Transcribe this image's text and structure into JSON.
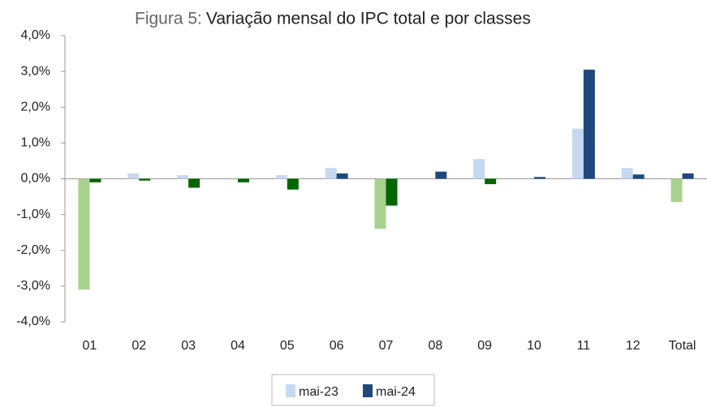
{
  "chart_data": {
    "type": "bar",
    "figure_label": "Figura 5:",
    "title": "Variação mensal do IPC total e por classes",
    "categories": [
      "01",
      "02",
      "03",
      "04",
      "05",
      "06",
      "07",
      "08",
      "09",
      "10",
      "11",
      "12",
      "Total"
    ],
    "series": [
      {
        "name": "mai-23",
        "color": "#c6d9f1",
        "negative_color": "#a9d18e",
        "values": [
          -3.1,
          0.15,
          0.1,
          0,
          0.1,
          0.3,
          -1.4,
          0,
          0.55,
          0,
          1.4,
          0.3,
          -0.65
        ]
      },
      {
        "name": "mai-24",
        "color": "#1f497d",
        "negative_color": "#006600",
        "values": [
          -0.1,
          -0.05,
          -0.25,
          -0.1,
          -0.3,
          0.15,
          -0.75,
          0.2,
          -0.15,
          0.05,
          3.05,
          0.12,
          0.15
        ]
      }
    ],
    "ylim": [
      -4,
      4
    ],
    "yticks": [
      {
        "value": -4,
        "label": "-4,0%"
      },
      {
        "value": -3,
        "label": "-3,0%"
      },
      {
        "value": -2,
        "label": "-2,0%"
      },
      {
        "value": -1,
        "label": "-1,0%"
      },
      {
        "value": 0,
        "label": "0,0%"
      },
      {
        "value": 1,
        "label": "1,0%"
      },
      {
        "value": 2,
        "label": "2,0%"
      },
      {
        "value": 3,
        "label": "3,0%"
      },
      {
        "value": 4,
        "label": "4,0%"
      }
    ],
    "grid": false,
    "legend": "bottom"
  }
}
